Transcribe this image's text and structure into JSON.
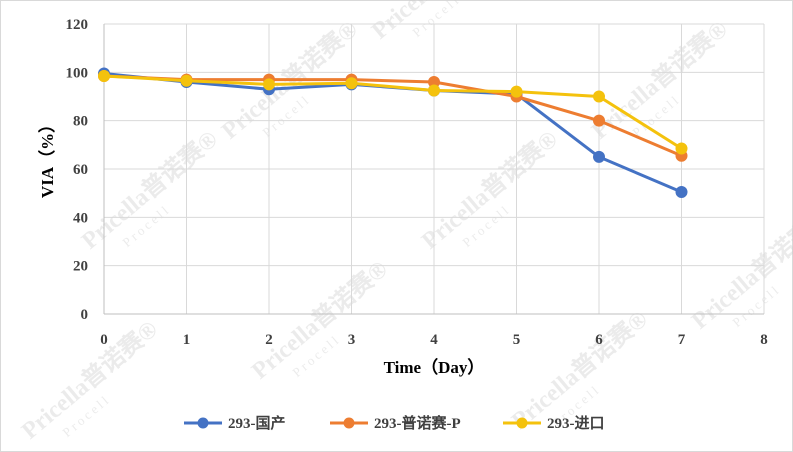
{
  "watermark": {
    "brand": "Pricella普诺赛®",
    "sub": "Procell"
  },
  "chart_data": {
    "type": "line",
    "title": "",
    "xlabel": "Time（Day）",
    "ylabel": "VIA（%）",
    "xlim": [
      0,
      8
    ],
    "ylim": [
      0,
      120
    ],
    "xticks": [
      0,
      1,
      2,
      3,
      4,
      5,
      6,
      7,
      8
    ],
    "yticks": [
      0,
      20,
      40,
      60,
      80,
      100,
      120
    ],
    "grid": true,
    "legend_position": "bottom",
    "x": [
      0,
      1,
      2,
      3,
      4,
      5,
      6,
      7
    ],
    "series": [
      {
        "name": "293-国产",
        "color": "#4472c4",
        "values": [
          99.5,
          96,
          93,
          95,
          92.5,
          91,
          65,
          50.5
        ]
      },
      {
        "name": "293-普诺赛-P",
        "color": "#ed7d31",
        "values": [
          98.5,
          97,
          97,
          97,
          96,
          90,
          80,
          65.5
        ]
      },
      {
        "name": "293-进口",
        "color": "#f4c20d",
        "values": [
          98.5,
          96.5,
          95,
          95.5,
          92.5,
          92,
          90,
          68.5
        ]
      }
    ]
  }
}
